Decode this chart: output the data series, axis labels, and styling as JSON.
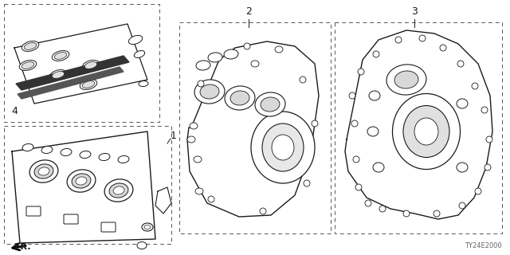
{
  "background_color": "#ffffff",
  "dc": "#1a1a1a",
  "lc": "#555555",
  "gray": "#aaaaaa",
  "diagram_code": "TY24E2000",
  "fr_label": "FR.",
  "part_numbers": [
    "1",
    "2",
    "3",
    "4"
  ]
}
